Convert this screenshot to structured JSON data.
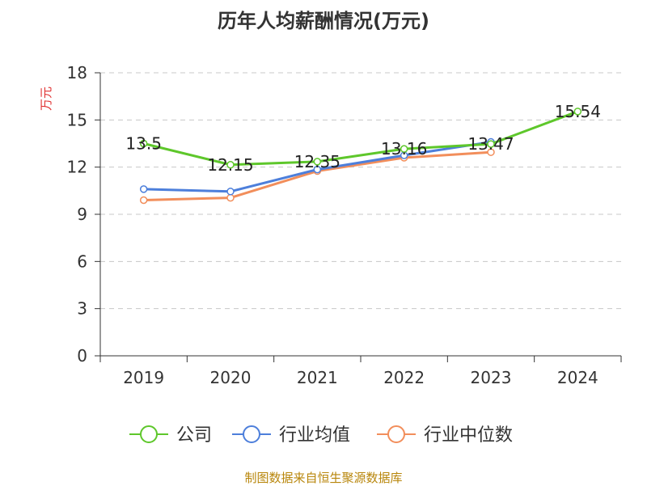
{
  "chart_data": {
    "type": "line",
    "title": "历年人均薪酬情况(万元)",
    "ylabel": "万元",
    "xlabel": "",
    "categories": [
      "2019",
      "2020",
      "2021",
      "2022",
      "2023",
      "2024"
    ],
    "ylim": [
      0,
      18
    ],
    "yticks": [
      0,
      3,
      6,
      9,
      12,
      15,
      18
    ],
    "grid": true,
    "legend_position": "bottom",
    "series": [
      {
        "name": "公司",
        "color": "#5ec72b",
        "values": [
          13.5,
          12.15,
          12.35,
          13.16,
          13.47,
          15.54
        ],
        "labels": [
          "13.5",
          "12.15",
          "12.35",
          "13.16",
          "13.47",
          "15.54"
        ]
      },
      {
        "name": "行业均值",
        "color": "#4d7fdb",
        "values": [
          10.6,
          10.45,
          11.85,
          12.75,
          13.6,
          null
        ]
      },
      {
        "name": "行业中位数",
        "color": "#f28e5b",
        "values": [
          9.9,
          10.05,
          11.75,
          12.6,
          12.95,
          null
        ]
      }
    ]
  },
  "ylabel_color": "#e03030",
  "source": "制图数据来自恒生聚源数据库"
}
